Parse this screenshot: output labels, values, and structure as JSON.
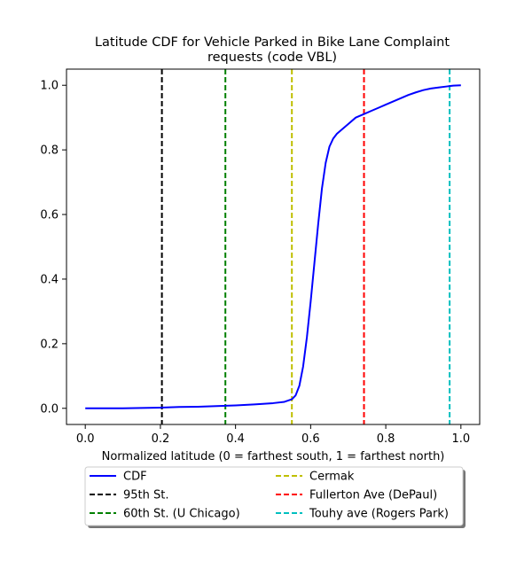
{
  "chart_data": {
    "type": "line",
    "title": "Latitude CDF for Vehicle Parked in Bike Lane Complaint\nrequests (code VBL)",
    "xlabel": "Normalized latitude (0 = farthest south, 1 = farthest north)",
    "ylabel": "",
    "xlim": [
      -0.05,
      1.05
    ],
    "ylim": [
      -0.05,
      1.05
    ],
    "x_ticks": [
      "0.0",
      "0.2",
      "0.4",
      "0.6",
      "0.8",
      "1.0"
    ],
    "y_ticks": [
      "0.0",
      "0.2",
      "0.4",
      "0.6",
      "0.8",
      "1.0"
    ],
    "grid": false,
    "legend_position": "below",
    "series": [
      {
        "name": "CDF",
        "color": "#0000ff",
        "style": "solid",
        "x": [
          0.0,
          0.1,
          0.2,
          0.25,
          0.3,
          0.35,
          0.4,
          0.45,
          0.5,
          0.53,
          0.55,
          0.56,
          0.57,
          0.58,
          0.59,
          0.6,
          0.61,
          0.62,
          0.63,
          0.64,
          0.65,
          0.66,
          0.67,
          0.68,
          0.7,
          0.72,
          0.74,
          0.76,
          0.78,
          0.8,
          0.82,
          0.84,
          0.86,
          0.88,
          0.9,
          0.92,
          0.94,
          0.96,
          0.98,
          1.0
        ],
        "y": [
          0.0,
          0.0,
          0.002,
          0.004,
          0.005,
          0.007,
          0.009,
          0.012,
          0.016,
          0.02,
          0.028,
          0.04,
          0.07,
          0.13,
          0.22,
          0.33,
          0.45,
          0.57,
          0.68,
          0.76,
          0.81,
          0.835,
          0.85,
          0.86,
          0.88,
          0.9,
          0.91,
          0.92,
          0.93,
          0.94,
          0.95,
          0.96,
          0.97,
          0.978,
          0.985,
          0.99,
          0.993,
          0.996,
          0.999,
          1.0
        ]
      }
    ],
    "vlines": [
      {
        "name": "95th St.",
        "x": 0.204,
        "color": "#000000"
      },
      {
        "name": "60th St. (U Chicago)",
        "x": 0.373,
        "color": "#008000"
      },
      {
        "name": "Cermak",
        "x": 0.55,
        "color": "#bfbf00"
      },
      {
        "name": "Fullerton Ave (DePaul)",
        "x": 0.742,
        "color": "#ff0000"
      },
      {
        "name": "Touhy ave (Rogers Park)",
        "x": 0.97,
        "color": "#00bfbf"
      }
    ]
  }
}
